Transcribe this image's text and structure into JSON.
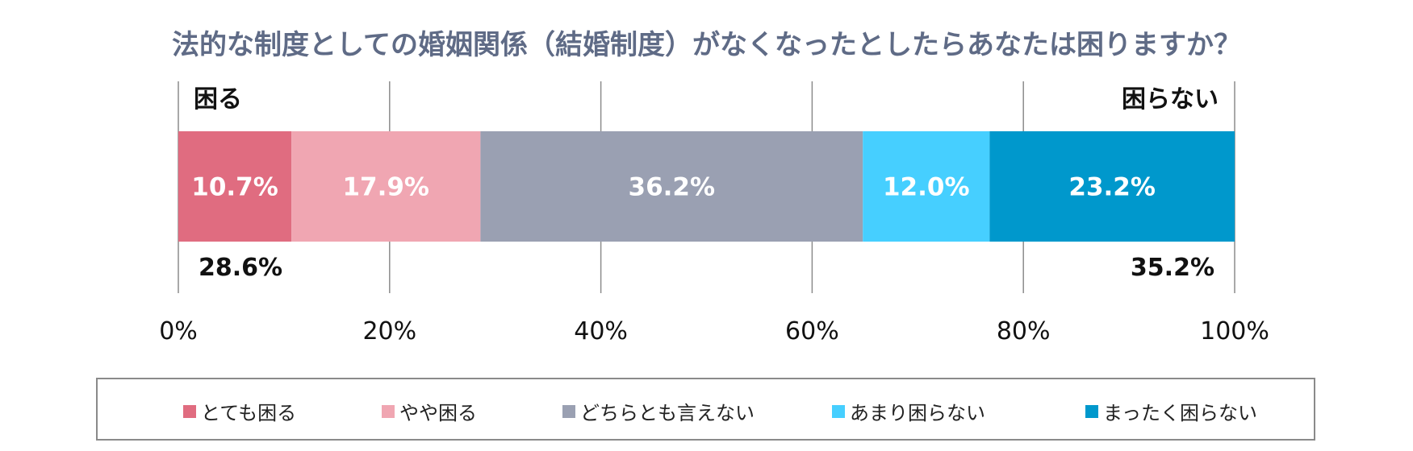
{
  "chart_data": {
    "type": "bar",
    "orientation": "horizontal-stacked-100",
    "title": "法的な制度としての婚姻関係（結婚制度）がなくなったとしたらあなたは困りますか？",
    "series": [
      {
        "name": "とても困る",
        "value": 10.7,
        "label": "10.7%",
        "color": "#e06c80"
      },
      {
        "name": "やや困る",
        "value": 17.9,
        "label": "17.9%",
        "color": "#f0a6b2"
      },
      {
        "name": "どちらとも言えない",
        "value": 36.2,
        "label": "36.2%",
        "color": "#9aa0b2"
      },
      {
        "name": "あまり困らない",
        "value": 12.0,
        "label": "12.0%",
        "color": "#46cfff"
      },
      {
        "name": "まったく困らない",
        "value": 23.2,
        "label": "23.2%",
        "color": "#0098cc"
      }
    ],
    "xlim": [
      0,
      100
    ],
    "x_ticks": [
      "0%",
      "20%",
      "40%",
      "60%",
      "80%",
      "100%"
    ],
    "grid": true,
    "group_labels": {
      "left": {
        "label": "困る",
        "total": "28.6%"
      },
      "right": {
        "label": "困らない",
        "total": "35.2%"
      }
    },
    "legend_position": "bottom"
  }
}
